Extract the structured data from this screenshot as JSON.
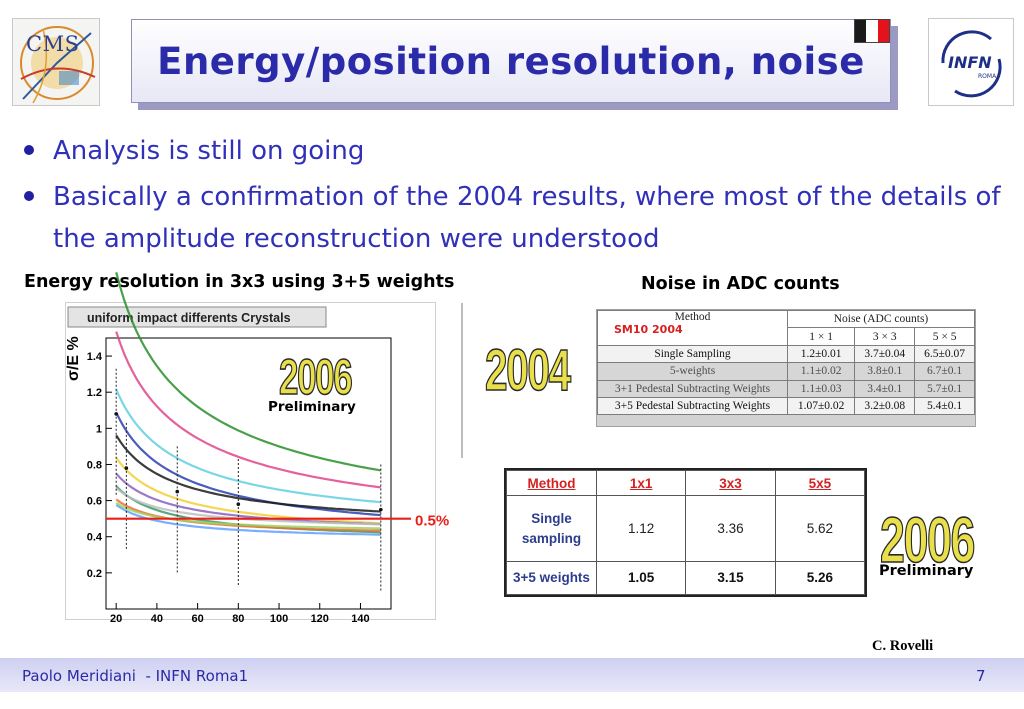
{
  "header": {
    "title": "Energy/position resolution, noise",
    "left_logo_text": "CMS",
    "right_logo_text": "INFN",
    "right_logo_subtext": "ROMA",
    "flag_colors": [
      "#007a3d",
      "#ffffff",
      "#ce2b37"
    ]
  },
  "bullets": [
    "Analysis is still on going",
    "Basically a confirmation of the 2004 results, where most of the details of the amplitude reconstruction were understood"
  ],
  "captions": {
    "energy": "Energy resolution in 3x3 using 3+5 weights",
    "noise": "Noise in ADC counts"
  },
  "chart_data": {
    "type": "line",
    "title": "uniform impact differents Crystals",
    "ylabel": "σ/E %",
    "xlabel": "",
    "xlim": [
      15,
      155
    ],
    "ylim": [
      0,
      1.5
    ],
    "xticks": [
      20,
      40,
      60,
      80,
      100,
      120,
      140
    ],
    "yticks": [
      0.2,
      0.4,
      0.6,
      0.8,
      1,
      1.2,
      1.4
    ],
    "grid": false,
    "reference_line": {
      "y": 0.5,
      "label": "0.5%",
      "color": "#e8201a"
    },
    "series_colors": [
      "#2a8f2a",
      "#e0458a",
      "#5fd0e0",
      "#2a3fb0",
      "#1a1a1a",
      "#f2cf35",
      "#8a60c0",
      "#3a9a6a",
      "#bdbdbd",
      "#e87030",
      "#60a0ff",
      "#a0d060"
    ],
    "curve_family": {
      "a": [
        0.16,
        0.13,
        0.1,
        0.09,
        0.075,
        0.065,
        0.055,
        0.05,
        0.045,
        0.04,
        0.038,
        0.036
      ],
      "c": [
        0.38,
        0.4,
        0.42,
        0.36,
        0.44,
        0.39,
        0.41,
        0.37,
        0.43,
        0.4,
        0.38,
        0.42
      ]
    },
    "data_points_x": [
      20,
      25,
      50,
      80,
      150
    ],
    "data_points_y": [
      1.08,
      0.78,
      0.65,
      0.58,
      0.55
    ]
  },
  "labels": {
    "preliminary": "Preliminary",
    "year_2006": "2006",
    "year_2004": "2004"
  },
  "noise_table_2004": {
    "method_header": "Method",
    "noise_header": "Noise (ADC counts)",
    "tag": "SM10 2004",
    "sizes": [
      "1 × 1",
      "3 × 3",
      "5 × 5"
    ],
    "rows": [
      [
        "Single Sampling",
        "1.2±0.01",
        "3.7±0.04",
        "6.5±0.07"
      ],
      [
        "5-weights",
        "1.1±0.02",
        "3.8±0.1",
        "6.7±0.1"
      ],
      [
        "3+1 Pedestal Subtracting Weights",
        "1.1±0.03",
        "3.4±0.1",
        "5.7±0.1"
      ],
      [
        "3+5 Pedestal Subtracting Weights",
        "1.07±0.02",
        "3.2±0.08",
        "5.4±0.1"
      ]
    ]
  },
  "noise_table_2006": {
    "headers": [
      "Method",
      "1x1",
      "3x3",
      "5x5"
    ],
    "rows": [
      [
        "Single sampling",
        "1.12",
        "3.36",
        "5.62"
      ],
      [
        "3+5 weights",
        "1.05",
        "3.15",
        "5.26"
      ]
    ]
  },
  "credit": "C. Rovelli",
  "footer": {
    "left": "Paolo Meridiani  - INFN Roma1",
    "page": "7"
  }
}
